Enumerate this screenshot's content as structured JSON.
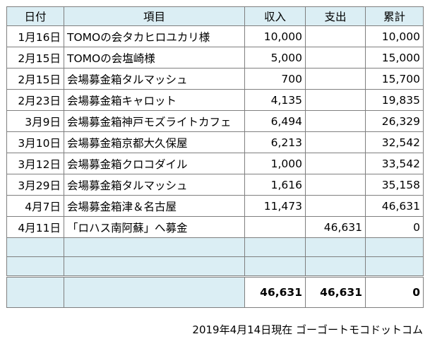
{
  "table": {
    "headers": {
      "date": "日付",
      "item": "項目",
      "income": "収入",
      "expense": "支出",
      "cumulative": "累計"
    },
    "rows": [
      {
        "date": "1月16日",
        "item": "TOMOの会タカヒロユカリ様",
        "income": "10,000",
        "expense": "",
        "cumulative": "10,000"
      },
      {
        "date": "2月15日",
        "item": "TOMOの会塩崎様",
        "income": "5,000",
        "expense": "",
        "cumulative": "15,000"
      },
      {
        "date": "2月15日",
        "item": "会場募金箱タルマッシュ",
        "income": "700",
        "expense": "",
        "cumulative": "15,700"
      },
      {
        "date": "2月23日",
        "item": "会場募金箱キャロット",
        "income": "4,135",
        "expense": "",
        "cumulative": "19,835"
      },
      {
        "date": "3月9日",
        "item": "会場募金箱神戸モズライトカフェ",
        "income": "6,494",
        "expense": "",
        "cumulative": "26,329"
      },
      {
        "date": "3月10日",
        "item": "会場募金箱京都大久保屋",
        "income": "6,213",
        "expense": "",
        "cumulative": "32,542"
      },
      {
        "date": "3月12日",
        "item": "会場募金箱クロコダイル",
        "income": "1,000",
        "expense": "",
        "cumulative": "33,542"
      },
      {
        "date": "3月29日",
        "item": "会場募金箱タルマッシュ",
        "income": "1,616",
        "expense": "",
        "cumulative": "35,158"
      },
      {
        "date": "4月7日",
        "item": "会場募金箱津＆名古屋",
        "income": "11,473",
        "expense": "",
        "cumulative": "46,631"
      },
      {
        "date": "4月11日",
        "item": "「ロハス南阿蘇」へ募金",
        "income": "",
        "expense": "46,631",
        "cumulative": "0"
      }
    ],
    "empty_rows": 2,
    "totals": {
      "income": "46,631",
      "expense": "46,631",
      "cumulative": "0"
    }
  },
  "footer": {
    "note": "2019年4月14日現在 ゴーゴートモコドットコム"
  },
  "colors": {
    "header_fill": "#dbeef4",
    "border": "#7f7f7f"
  }
}
